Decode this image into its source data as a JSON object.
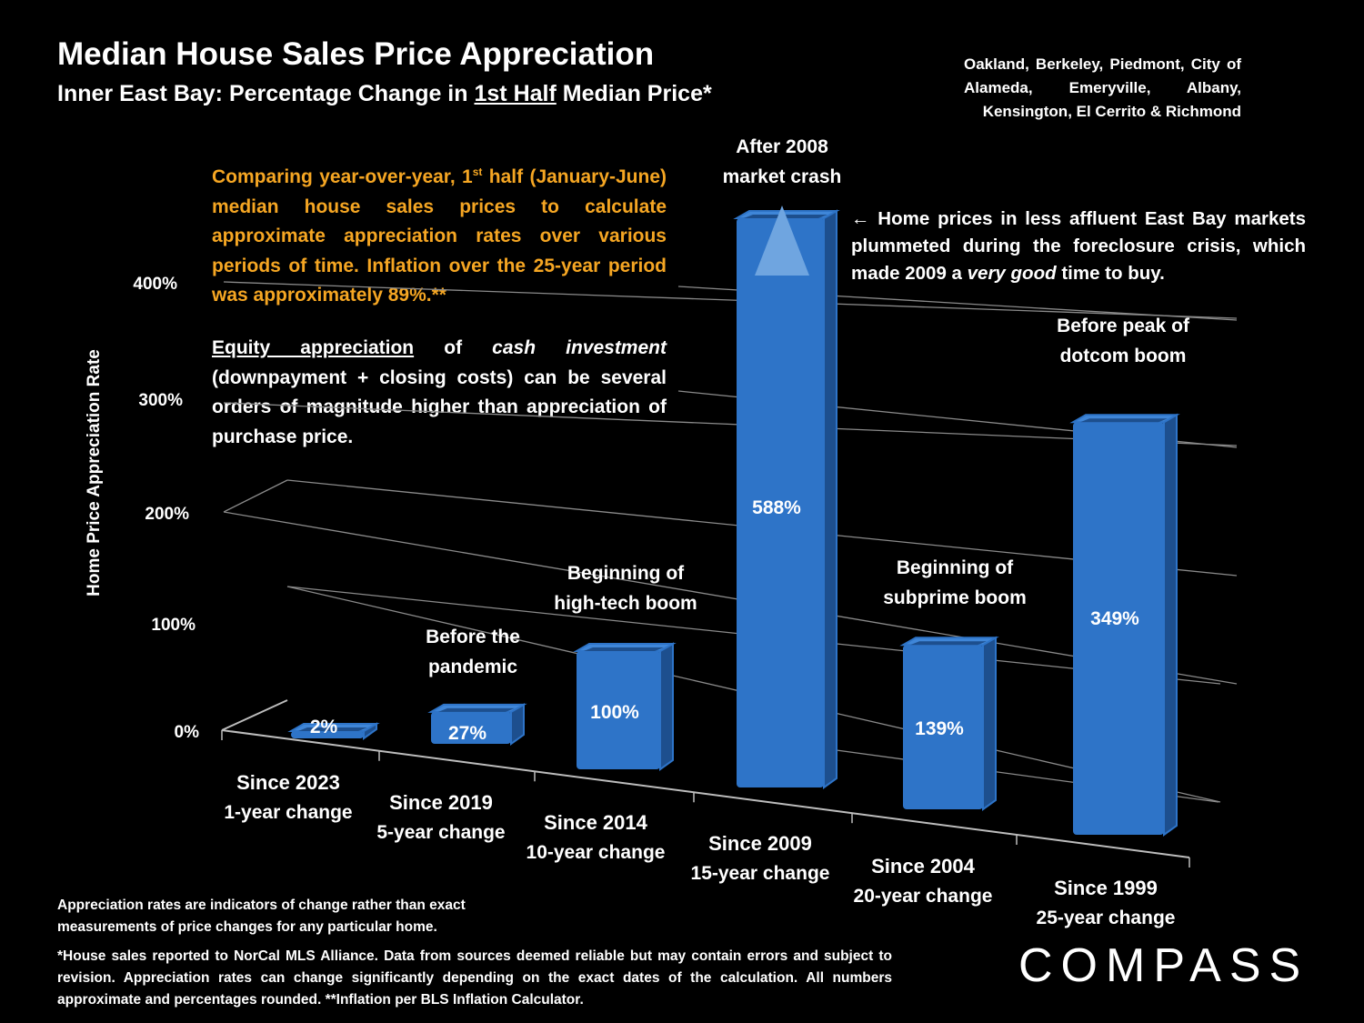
{
  "header": {
    "title": "Median House Sales Price Appreciation",
    "subtitle_pre": "Inner East Bay: Percentage Change in ",
    "subtitle_underlined": "1st Half",
    "subtitle_post": " Median Price*",
    "region": "Oakland, Berkeley, Piedmont, City of Alameda, Emeryville, Albany, Kensington, El Cerrito & Richmond"
  },
  "intro": {
    "pre": "Comparing year-over-year, 1",
    "sup": "st",
    "post": " half (January-June) median house sales prices to calculate approximate appreciation rates over various periods of time. Inflation over the 25-year period was approximately 89%.**"
  },
  "equity": {
    "underlined": "Equity appreciation",
    "mid": " of ",
    "italic": "cash investment",
    "post": " (downpayment + closing costs) can be several orders of magnitude higher than appreciation of purchase price."
  },
  "crash_note": {
    "pre": "← Home prices in less affluent East Bay markets plummeted during the foreclosure crisis, which made 2009 a ",
    "italic": "very good",
    "post": " time to buy."
  },
  "footnotes": {
    "line1": "Appreciation rates are indicators of change rather than exact measurements of price changes for any particular home.",
    "line2": "*House sales reported to NorCal MLS Alliance. Data from sources deemed reliable but may contain errors and subject to revision. Appreciation rates can change significantly depending on the exact dates of the calculation. All numbers  approximate and percentages rounded. **Inflation per BLS Inflation Calculator."
  },
  "logo": "COMPASS",
  "colors": {
    "bar": "#2e74c8",
    "bar_dark": "#1d4f8e",
    "intro_text": "#f5a623",
    "background": "#000000"
  },
  "chart_data": {
    "type": "bar",
    "style": "3d-column",
    "ylabel": "Home Price Appreciation Rate",
    "y_ticks": [
      "0%",
      "100%",
      "200%",
      "300%",
      "400%"
    ],
    "ylim": [
      0,
      400
    ],
    "grid": true,
    "categories": [
      {
        "line1": "Since 2023",
        "line2": "1-year change"
      },
      {
        "line1": "Since 2019",
        "line2": "5-year change"
      },
      {
        "line1": "Since 2014",
        "line2": "10-year change"
      },
      {
        "line1": "Since 2009",
        "line2": "15-year change"
      },
      {
        "line1": "Since 2004",
        "line2": "20-year change"
      },
      {
        "line1": "Since 1999",
        "line2": "25-year change"
      }
    ],
    "values": [
      2,
      27,
      100,
      588,
      139,
      349
    ],
    "value_labels": [
      "2%",
      "27%",
      "100%",
      "588%",
      "139%",
      "349%"
    ],
    "annotations": [
      null,
      {
        "line1": "Before the",
        "line2": "pandemic"
      },
      {
        "line1": "Beginning of",
        "line2": "high-tech boom"
      },
      {
        "line1": "After 2008",
        "line2": "market crash"
      },
      {
        "line1": "Beginning of",
        "line2": "subprime boom"
      },
      {
        "line1": "Before peak of",
        "line2": "dotcom boom"
      }
    ],
    "clipped_series_index": 3
  }
}
